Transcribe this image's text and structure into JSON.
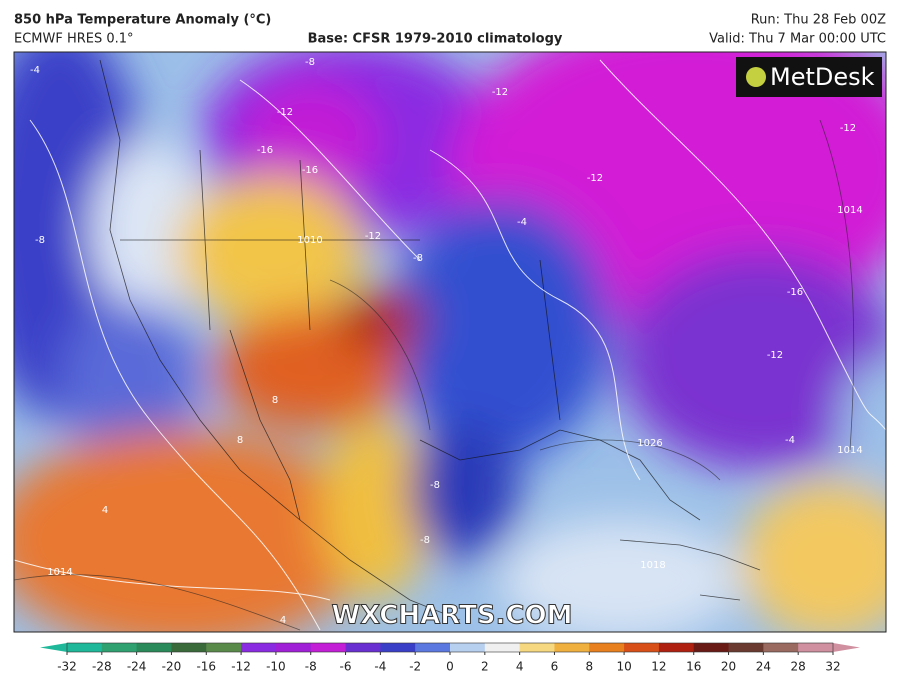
{
  "header": {
    "title": "850 hPa Temperature Anomaly (°C)",
    "model": "ECMWF HRES 0.1°",
    "base": "Base: CFSR 1979-2010 climatology",
    "run": "Run: Thu 28 Feb 00Z",
    "valid": "Valid: Thu 7 Mar 00:00 UTC"
  },
  "map": {
    "logo": "MetDesk",
    "watermark": "WXCHARTS.COM",
    "contour_labels": [
      "-4",
      "-8",
      "-12",
      "-16",
      "-16",
      "-12",
      "-8",
      "-12",
      "-12",
      "-4",
      "-16",
      "-12",
      "-4",
      "1014",
      "-12",
      "1014",
      "-8",
      "4",
      "1014",
      "8",
      "8",
      "-8",
      "-8",
      "1026",
      "1018",
      "1010",
      "4"
    ]
  },
  "colorbar": {
    "ticks": [
      -32,
      -28,
      -24,
      -20,
      -16,
      -12,
      -10,
      -8,
      -6,
      -4,
      -2,
      0,
      2,
      4,
      6,
      8,
      10,
      12,
      16,
      20,
      24,
      28,
      32
    ],
    "colors": [
      "#1fb89a",
      "#2fa070",
      "#2a8a5a",
      "#3a6a3a",
      "#5a8a4a",
      "#8a2be2",
      "#a020d8",
      "#c21fd6",
      "#6a2fd0",
      "#3a3fc8",
      "#5a78e0",
      "#b8d0f0",
      "#f0f0f0",
      "#f5d880",
      "#f0b040",
      "#e88020",
      "#d85018",
      "#b02010",
      "#6a1a14",
      "#6a3a30",
      "#9a6a60",
      "#d090a0"
    ]
  }
}
